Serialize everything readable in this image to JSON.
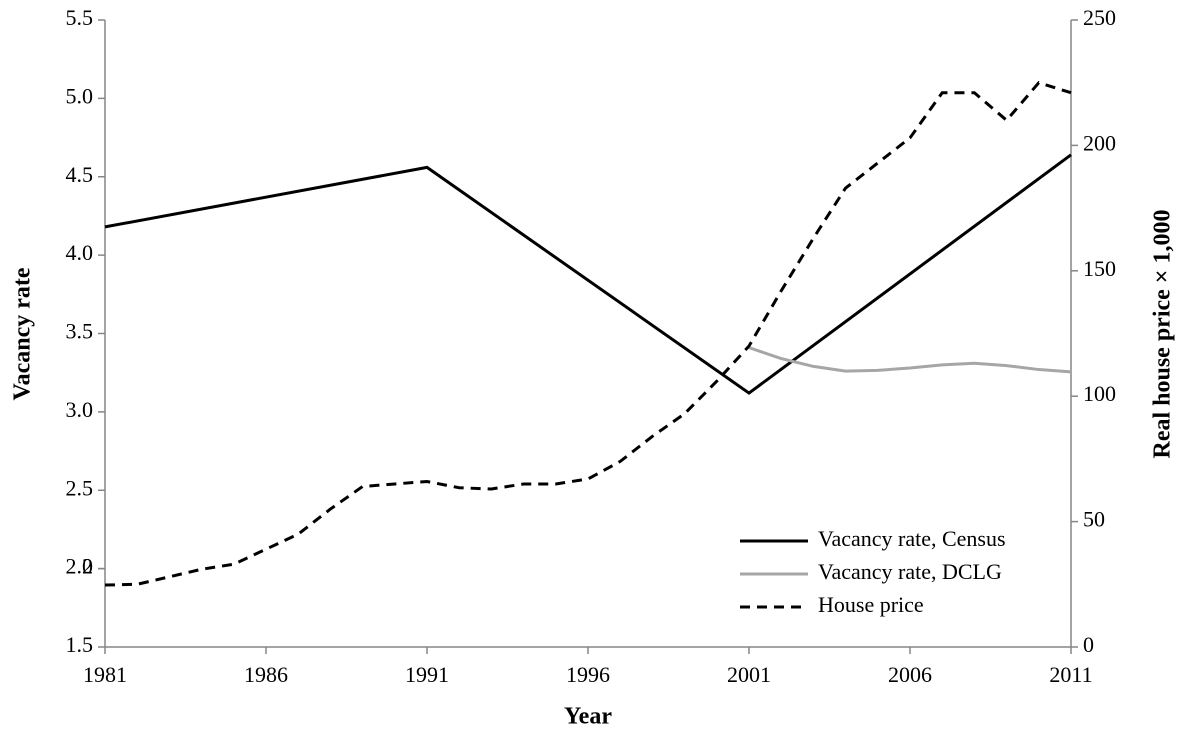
{
  "chart_data": {
    "type": "line",
    "xlabel": "Year",
    "ylabel": "Vacancy rate",
    "y2label": "Real house price × 1,000",
    "xlim": [
      1981,
      2011
    ],
    "xticks": [
      1981,
      1986,
      1991,
      1996,
      2001,
      2006,
      2011
    ],
    "ylim": [
      1.5,
      5.5
    ],
    "yticks": [
      1.5,
      2.0,
      {
        "value": 2,
        "label": "2.0"
      },
      2.5,
      {
        "value": 3,
        "label": "3.0"
      },
      3.5,
      {
        "value": 4,
        "label": "4.0"
      },
      4.5,
      {
        "value": 5,
        "label": "5.0"
      },
      5.5
    ],
    "y2lim": [
      0,
      250
    ],
    "y2ticks": [
      0,
      50,
      100,
      150,
      200,
      250
    ],
    "grid": false,
    "legend": "lower right",
    "series": [
      {
        "name": "Vacancy rate, Census",
        "color": "#000000",
        "line_style": "solid",
        "x": [
          1981,
          1991,
          2001,
          2011
        ],
        "values": [
          4.18,
          4.56,
          3.12,
          4.64
        ]
      },
      {
        "name": "Vacancy rate, DCLG",
        "color": "#a6a6a6",
        "line_style": "solid",
        "x": [
          2001,
          2002,
          2003,
          2004,
          2005,
          2006,
          2007,
          2008,
          2009,
          2010,
          2011
        ],
        "values": [
          3.41,
          3.34,
          3.29,
          3.26,
          3.265,
          3.28,
          3.3,
          3.31,
          3.295,
          3.27,
          3.255
        ]
      },
      {
        "name": "House price",
        "color": "#000000",
        "line_style": "dashed",
        "axis": "y2",
        "x": [
          1981,
          1982,
          1983,
          1984,
          1985,
          1986,
          1987,
          1988,
          1989,
          1990,
          1991,
          1992,
          1993,
          1994,
          1995,
          1996,
          1997,
          1998,
          1999,
          2000,
          2001,
          2002,
          2003,
          2004,
          2005,
          2006,
          2007,
          2008,
          2009,
          2010,
          2011
        ],
        "values": [
          24.7,
          25,
          28,
          31,
          33,
          39,
          45,
          55,
          64,
          65,
          66,
          63.5,
          63,
          65,
          65,
          67,
          74,
          84,
          93,
          106,
          120,
          142,
          163,
          183,
          193,
          203,
          221,
          221,
          210,
          225,
          221
        ]
      }
    ]
  }
}
